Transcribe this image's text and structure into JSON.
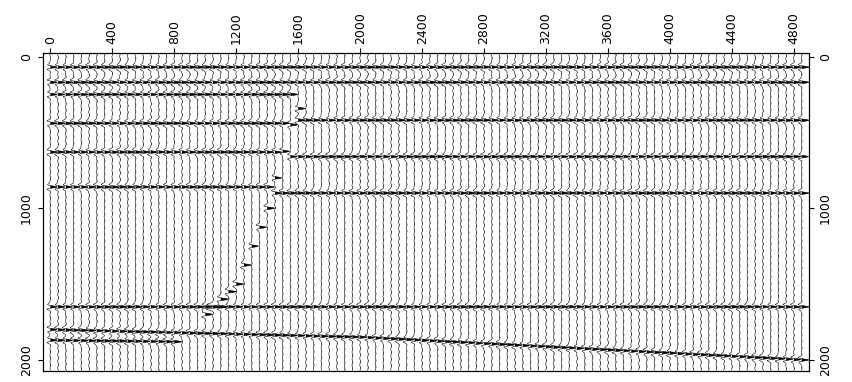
{
  "chart_data": {
    "type": "wiggle",
    "xlim": [
      -50,
      4900
    ],
    "ylim": [
      2070,
      -20
    ],
    "xticks": [
      0,
      400,
      800,
      1200,
      1600,
      2000,
      2400,
      2800,
      3200,
      3600,
      4000,
      4400,
      4800
    ],
    "yticks": [
      0,
      1000,
      2000
    ],
    "tick_labels": true,
    "trace_x": [
      0,
      50,
      100,
      150,
      200,
      250,
      300,
      350,
      400,
      450,
      500,
      550,
      600,
      650,
      700,
      750,
      800,
      850,
      900,
      950,
      1000,
      1050,
      1100,
      1150,
      1200,
      1250,
      1300,
      1350,
      1400,
      1450,
      1500,
      1550,
      1600,
      1650,
      1700,
      1750,
      1800,
      1850,
      1900,
      1950,
      2000,
      2050,
      2100,
      2150,
      2200,
      2250,
      2300,
      2350,
      2400,
      2450,
      2500,
      2550,
      2600,
      2650,
      2700,
      2750,
      2800,
      2850,
      2900,
      2950,
      3000,
      3050,
      3100,
      3150,
      3200,
      3250,
      3300,
      3350,
      3400,
      3450,
      3500,
      3550,
      3600,
      3650,
      3700,
      3750,
      3800,
      3850,
      3900,
      3950,
      4000,
      4050,
      4100,
      4150,
      4200,
      4250,
      4300,
      4350,
      4400,
      4450,
      4500,
      4550,
      4600,
      4650,
      4700,
      4750,
      4800,
      4850
    ],
    "reflectors": [
      {
        "x": [
          0,
          4850
        ],
        "values": [
          70,
          70
        ]
      },
      {
        "x": [
          0,
          4850
        ],
        "values": [
          170,
          170
        ]
      },
      {
        "x": [
          0,
          1550
        ],
        "values": [
          250,
          250
        ]
      },
      {
        "x": [
          0,
          1500
        ],
        "values": [
          440,
          440
        ]
      },
      {
        "x": [
          0,
          1450
        ],
        "values": [
          630,
          630
        ]
      },
      {
        "x": [
          0,
          1400
        ],
        "values": [
          860,
          860
        ]
      },
      {
        "x": [
          1600,
          4850
        ],
        "values": [
          420,
          420
        ]
      },
      {
        "x": [
          1550,
          4850
        ],
        "values": [
          660,
          660
        ]
      },
      {
        "x": [
          1450,
          4850
        ],
        "values": [
          900,
          900
        ]
      },
      {
        "x": [
          1000,
          1200,
          1400,
          1450,
          1550,
          1620
        ],
        "values": [
          1700,
          1500,
          1000,
          800,
          450,
          300
        ]
      },
      {
        "x": [
          0,
          4850
        ],
        "values": [
          1650,
          1650
        ]
      },
      {
        "x": [
          0,
          2000,
          4850
        ],
        "values": [
          1800,
          1850,
          2000
        ]
      },
      {
        "x": [
          0,
          800
        ],
        "values": [
          1870,
          1880
        ]
      }
    ]
  }
}
